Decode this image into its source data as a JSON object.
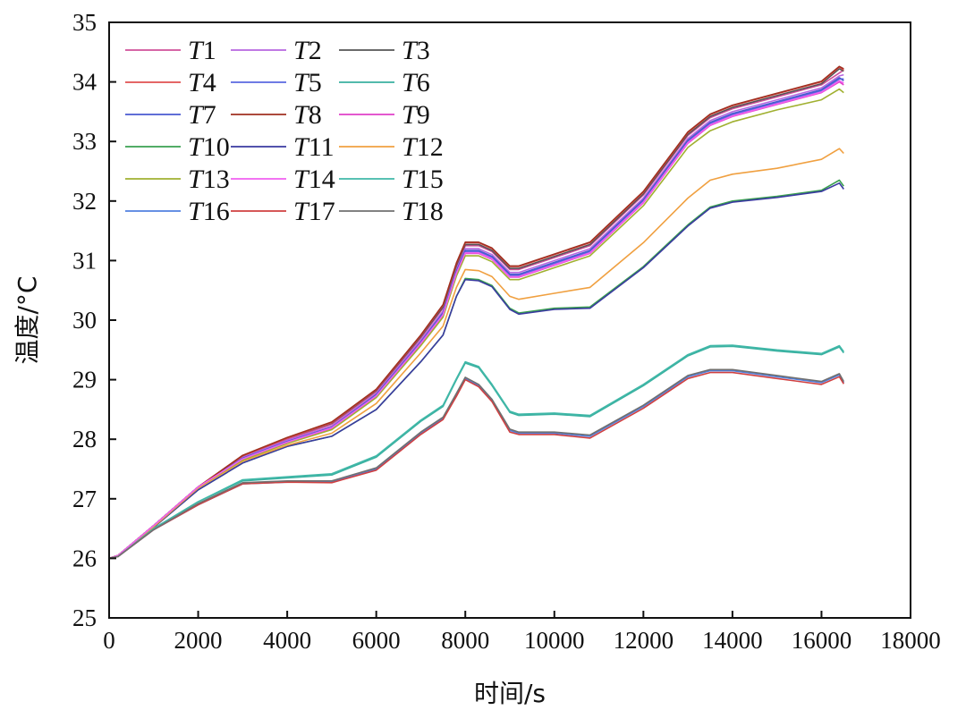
{
  "chart_data": {
    "type": "line",
    "title": "",
    "xlabel": "时间/s",
    "ylabel": "温度/°C",
    "xlim": [
      0,
      18000
    ],
    "ylim": [
      25,
      35
    ],
    "x_ticks": [
      "0",
      "2000",
      "4000",
      "6000",
      "8000",
      "10000",
      "12000",
      "14000",
      "16000",
      "18000"
    ],
    "y_ticks": [
      "25",
      "26",
      "27",
      "28",
      "29",
      "30",
      "31",
      "32",
      "33",
      "34",
      "35"
    ],
    "grid": false,
    "legend_position": "top-left",
    "x": [
      0,
      200,
      1000,
      2000,
      3000,
      4000,
      5000,
      6000,
      7000,
      7500,
      7800,
      8000,
      8300,
      8600,
      9000,
      9200,
      10000,
      10800,
      12000,
      13000,
      13500,
      14000,
      15000,
      16000,
      16400,
      16500
    ],
    "series": [
      {
        "name": "T1",
        "color": "#d0509a",
        "values": [
          26.0,
          26.05,
          26.55,
          27.2,
          27.7,
          28.0,
          28.25,
          28.8,
          29.7,
          30.2,
          30.9,
          31.25,
          31.25,
          31.15,
          30.85,
          30.85,
          31.05,
          31.25,
          32.1,
          33.1,
          33.4,
          33.55,
          33.75,
          33.95,
          34.15,
          34.2
        ]
      },
      {
        "name": "T2",
        "color": "#b766e0",
        "values": [
          26.0,
          26.05,
          26.55,
          27.2,
          27.7,
          27.98,
          28.22,
          28.77,
          29.66,
          30.15,
          30.85,
          31.2,
          31.2,
          31.1,
          30.8,
          30.8,
          31.0,
          31.2,
          32.05,
          33.05,
          33.35,
          33.5,
          33.7,
          33.9,
          34.1,
          34.12
        ]
      },
      {
        "name": "T3",
        "color": "#555555",
        "values": [
          26.0,
          26.05,
          26.55,
          27.2,
          27.72,
          28.02,
          28.27,
          28.82,
          29.72,
          30.22,
          30.92,
          31.27,
          31.27,
          31.17,
          30.87,
          30.87,
          31.07,
          31.27,
          32.12,
          33.12,
          33.42,
          33.57,
          33.77,
          33.97,
          34.22,
          34.18
        ]
      },
      {
        "name": "T4",
        "color": "#e05050",
        "values": [
          26.0,
          26.05,
          26.55,
          27.2,
          27.72,
          28.02,
          28.28,
          28.83,
          29.74,
          30.25,
          30.95,
          31.3,
          31.3,
          31.2,
          30.9,
          30.9,
          31.1,
          31.3,
          32.15,
          33.15,
          33.45,
          33.6,
          33.8,
          34.0,
          34.25,
          34.2
        ]
      },
      {
        "name": "T5",
        "color": "#5a68e0",
        "values": [
          26.0,
          26.05,
          26.55,
          27.2,
          27.68,
          27.96,
          28.2,
          28.74,
          29.62,
          30.1,
          30.8,
          31.15,
          31.15,
          31.05,
          30.75,
          30.75,
          30.95,
          31.15,
          32.0,
          33.0,
          33.3,
          33.45,
          33.65,
          33.85,
          34.05,
          34.05
        ]
      },
      {
        "name": "T6",
        "color": "#3ab0a0",
        "values": [
          26.0,
          26.03,
          26.5,
          26.95,
          27.3,
          27.35,
          27.4,
          27.7,
          28.3,
          28.55,
          29.0,
          29.28,
          29.2,
          28.9,
          28.45,
          28.4,
          28.42,
          28.38,
          28.9,
          29.4,
          29.55,
          29.56,
          29.48,
          29.42,
          29.55,
          29.45
        ]
      },
      {
        "name": "T7",
        "color": "#4a5ad0",
        "values": [
          26.0,
          26.05,
          26.55,
          27.2,
          27.68,
          27.96,
          28.2,
          28.75,
          29.63,
          30.12,
          30.82,
          31.17,
          31.17,
          31.07,
          30.77,
          30.77,
          30.97,
          31.17,
          32.02,
          33.02,
          33.32,
          33.47,
          33.67,
          33.87,
          34.07,
          34.02
        ]
      },
      {
        "name": "T8",
        "color": "#a03020",
        "values": [
          26.0,
          26.05,
          26.55,
          27.2,
          27.73,
          28.03,
          28.29,
          28.84,
          29.75,
          30.26,
          30.96,
          31.31,
          31.31,
          31.21,
          30.91,
          30.91,
          31.11,
          31.31,
          32.16,
          33.16,
          33.46,
          33.61,
          33.81,
          34.01,
          34.26,
          34.22
        ]
      },
      {
        "name": "T9",
        "color": "#e040c8",
        "values": [
          26.0,
          26.05,
          26.55,
          27.2,
          27.66,
          27.94,
          28.18,
          28.72,
          29.6,
          30.08,
          30.78,
          31.12,
          31.12,
          31.02,
          30.72,
          30.72,
          30.92,
          31.12,
          31.97,
          32.97,
          33.27,
          33.42,
          33.62,
          33.82,
          34.0,
          33.95
        ]
      },
      {
        "name": "T10",
        "color": "#3aa050",
        "values": [
          26.0,
          26.05,
          26.52,
          27.15,
          27.6,
          27.88,
          28.05,
          28.5,
          29.3,
          29.75,
          30.4,
          30.7,
          30.68,
          30.58,
          30.2,
          30.12,
          30.2,
          30.22,
          30.9,
          31.6,
          31.9,
          32.0,
          32.08,
          32.18,
          32.35,
          32.25
        ]
      },
      {
        "name": "T11",
        "color": "#3a3aa0",
        "values": [
          26.0,
          26.05,
          26.52,
          27.15,
          27.6,
          27.88,
          28.05,
          28.5,
          29.3,
          29.75,
          30.4,
          30.68,
          30.66,
          30.56,
          30.18,
          30.1,
          30.18,
          30.2,
          30.88,
          31.58,
          31.88,
          31.98,
          32.06,
          32.16,
          32.3,
          32.2
        ]
      },
      {
        "name": "T12",
        "color": "#f0a040",
        "values": [
          26.0,
          26.05,
          26.53,
          27.18,
          27.63,
          27.9,
          28.1,
          28.6,
          29.45,
          29.9,
          30.55,
          30.85,
          30.83,
          30.73,
          30.4,
          30.35,
          30.45,
          30.55,
          31.3,
          32.05,
          32.35,
          32.45,
          32.55,
          32.7,
          32.88,
          32.8
        ]
      },
      {
        "name": "T13",
        "color": "#a0b030",
        "values": [
          26.0,
          26.05,
          26.55,
          27.2,
          27.65,
          27.93,
          28.16,
          28.7,
          29.57,
          30.05,
          30.74,
          31.08,
          31.08,
          30.98,
          30.68,
          30.68,
          30.88,
          31.08,
          31.92,
          32.9,
          33.18,
          33.33,
          33.53,
          33.7,
          33.88,
          33.82
        ]
      },
      {
        "name": "T14",
        "color": "#f060f0",
        "values": [
          26.0,
          26.05,
          26.55,
          27.2,
          27.67,
          27.95,
          28.19,
          28.73,
          29.61,
          30.09,
          30.79,
          31.13,
          31.13,
          31.03,
          30.73,
          30.73,
          30.93,
          31.13,
          31.98,
          32.98,
          33.28,
          33.43,
          33.63,
          33.83,
          34.02,
          33.98
        ]
      },
      {
        "name": "T15",
        "color": "#40b8a8",
        "values": [
          26.0,
          26.03,
          26.5,
          26.95,
          27.32,
          27.37,
          27.42,
          27.72,
          28.32,
          28.57,
          29.02,
          29.3,
          29.22,
          28.92,
          28.47,
          28.42,
          28.44,
          28.4,
          28.92,
          29.42,
          29.57,
          29.58,
          29.5,
          29.44,
          29.57,
          29.47
        ]
      },
      {
        "name": "T16",
        "color": "#5080e0",
        "values": [
          26.0,
          26.03,
          26.48,
          26.9,
          27.25,
          27.28,
          27.28,
          27.5,
          28.1,
          28.35,
          28.75,
          29.02,
          28.9,
          28.65,
          28.15,
          28.1,
          28.1,
          28.05,
          28.55,
          29.05,
          29.15,
          29.15,
          29.05,
          28.95,
          29.08,
          28.95
        ]
      },
      {
        "name": "T17",
        "color": "#d04040",
        "values": [
          26.0,
          26.03,
          26.48,
          26.9,
          27.25,
          27.28,
          27.27,
          27.48,
          28.08,
          28.33,
          28.72,
          29.0,
          28.88,
          28.63,
          28.12,
          28.08,
          28.08,
          28.02,
          28.52,
          29.02,
          29.12,
          29.12,
          29.02,
          28.92,
          29.05,
          28.93
        ]
      },
      {
        "name": "T18",
        "color": "#707070",
        "values": [
          26.0,
          26.03,
          26.48,
          26.92,
          27.27,
          27.3,
          27.3,
          27.52,
          28.12,
          28.37,
          28.77,
          29.04,
          28.92,
          28.67,
          28.17,
          28.12,
          28.12,
          28.07,
          28.57,
          29.07,
          29.17,
          29.17,
          29.07,
          28.97,
          29.1,
          28.97
        ]
      }
    ]
  }
}
